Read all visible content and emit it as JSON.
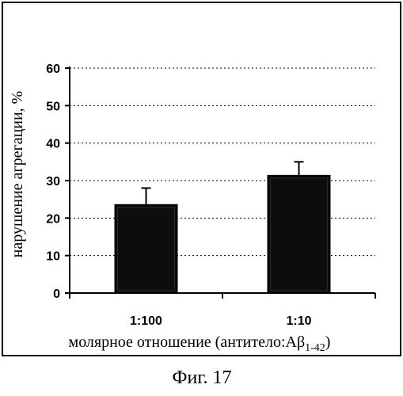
{
  "chart_data": {
    "type": "bar",
    "categories": [
      "1:100",
      "1:10"
    ],
    "values": [
      23.5,
      31.3
    ],
    "error_upper": [
      28.0,
      35.0
    ],
    "yticks": [
      "0",
      "10",
      "20",
      "30",
      "40",
      "50",
      "60"
    ],
    "ylim": [
      0,
      60
    ],
    "ylabel": "нарушение агрегации, %",
    "xlabel_main": "молярное отношение (антитело:Aβ",
    "xlabel_sub": "1-42",
    "xlabel_end": ")",
    "grid": "horizontal-dotted",
    "bar_color": "#0d0d0d"
  },
  "caption": "Фиг. 17"
}
